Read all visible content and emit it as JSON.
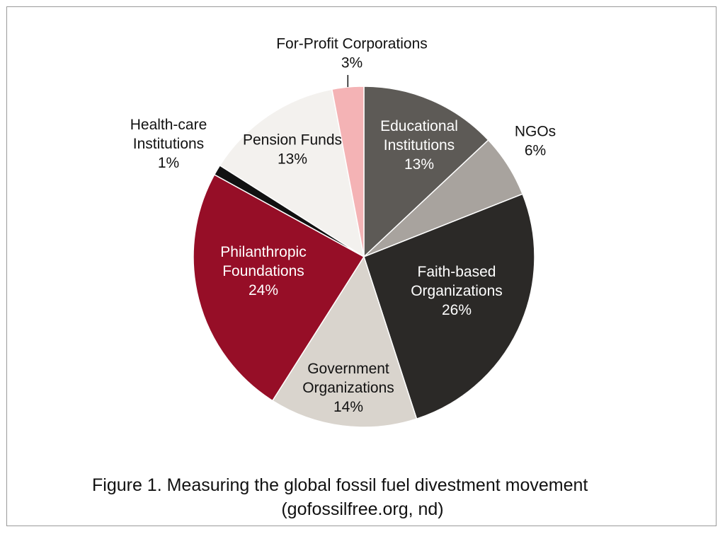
{
  "chart_data": {
    "type": "pie",
    "title": "Figure 1.  Measuring the global fossil fuel divestment movement",
    "subtitle": "(gofossilfree.org, nd)",
    "slices": [
      {
        "label": "Educational Institutions",
        "label_lines": [
          "Educational",
          "Institutions"
        ],
        "value": 13,
        "value_label": "13%",
        "color": "#5d5a56",
        "text_color": "#ffffff"
      },
      {
        "label": "NGOs",
        "label_lines": [
          "NGOs"
        ],
        "value": 6,
        "value_label": "6%",
        "color": "#a8a39e",
        "text_color": "#111111"
      },
      {
        "label": "Faith-based Organizations",
        "label_lines": [
          "Faith-based",
          "Organizations"
        ],
        "value": 26,
        "value_label": "26%",
        "color": "#2b2927",
        "text_color": "#ffffff"
      },
      {
        "label": "Government Organizations",
        "label_lines": [
          "Government",
          "Organizations"
        ],
        "value": 14,
        "value_label": "14%",
        "color": "#d9d4cd",
        "text_color": "#111111"
      },
      {
        "label": "Philanthropic Foundations",
        "label_lines": [
          "Philanthropic",
          "Foundations"
        ],
        "value": 24,
        "value_label": "24%",
        "color": "#960e27",
        "text_color": "#ffffff"
      },
      {
        "label": "Health-care Institutions",
        "label_lines": [
          "Health-care",
          "Institutions"
        ],
        "value": 1,
        "value_label": "1%",
        "color": "#111111",
        "text_color": "#111111"
      },
      {
        "label": "Pension Funds",
        "label_lines": [
          "Pension Funds"
        ],
        "value": 13,
        "value_label": "13%",
        "color": "#f3f1ee",
        "text_color": "#111111"
      },
      {
        "label": "For-Profit Corporations",
        "label_lines": [
          "For-Profit Corporations"
        ],
        "value": 3,
        "value_label": "3%",
        "color": "#f4b3b5",
        "text_color": "#111111"
      }
    ],
    "legend": "none"
  }
}
